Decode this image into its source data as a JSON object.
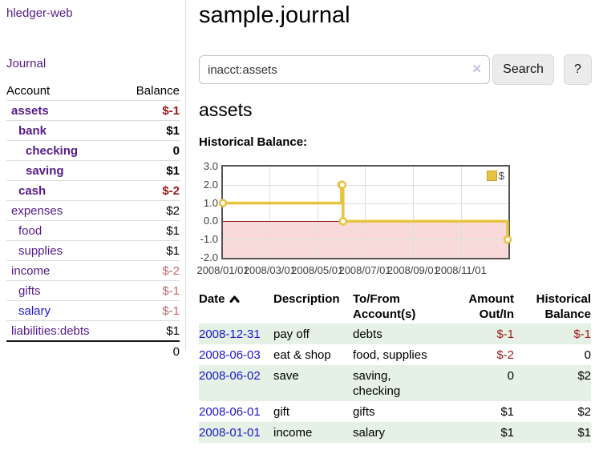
{
  "app": {
    "title": "hledger-web"
  },
  "header": {
    "title": "sample.journal"
  },
  "sidebar": {
    "journal_link": "Journal",
    "accounts_table": {
      "headers": [
        "Account",
        "Balance"
      ],
      "rows": [
        {
          "name": "assets",
          "balance": "$-1",
          "level": 1,
          "bold": true,
          "balance_color": "negative-strong",
          "link_color": "purple"
        },
        {
          "name": "bank",
          "balance": "$1",
          "level": 2,
          "bold": true,
          "balance_color": "normal",
          "link_color": "purple"
        },
        {
          "name": "checking",
          "balance": "0",
          "level": 3,
          "bold": true,
          "balance_color": "normal",
          "link_color": "purple"
        },
        {
          "name": "saving",
          "balance": "$1",
          "level": 3,
          "bold": true,
          "balance_color": "normal",
          "link_color": "purple"
        },
        {
          "name": "cash",
          "balance": "$-2",
          "level": 2,
          "bold": true,
          "balance_color": "negative-strong",
          "link_color": "purple"
        },
        {
          "name": "expenses",
          "balance": "$2",
          "level": 1,
          "bold": false,
          "balance_color": "normal",
          "link_color": "purple"
        },
        {
          "name": "food",
          "balance": "$1",
          "level": 2,
          "bold": false,
          "balance_color": "normal",
          "link_color": "purple"
        },
        {
          "name": "supplies",
          "balance": "$1",
          "level": 2,
          "bold": false,
          "balance_color": "normal",
          "link_color": "purple"
        },
        {
          "name": "income",
          "balance": "$-2",
          "level": 1,
          "bold": false,
          "balance_color": "negative-soft",
          "link_color": "purple"
        },
        {
          "name": "gifts",
          "balance": "$-1",
          "level": 2,
          "bold": false,
          "balance_color": "negative-soft",
          "link_color": "purple"
        },
        {
          "name": "salary",
          "balance": "$-1",
          "level": 2,
          "bold": false,
          "balance_color": "negative-soft",
          "link_color": "blue"
        },
        {
          "name": "liabilities:debts",
          "balance": "$1",
          "level": 1,
          "bold": false,
          "balance_color": "normal",
          "link_color": "purple"
        }
      ],
      "total": "0"
    }
  },
  "search": {
    "query": "inacct:assets",
    "clear_icon": "✕",
    "button_label": "Search",
    "help_label": "?"
  },
  "account_page": {
    "heading": "assets",
    "chart_label": "Historical Balance:"
  },
  "chart_data": {
    "type": "line",
    "step": true,
    "title": "Historical Balance",
    "x_range": [
      "2008-01-01",
      "2009-01-01"
    ],
    "ylim": [
      -2,
      3
    ],
    "grid": true,
    "legend_position": "top-right",
    "legend": {
      "label": "$"
    },
    "series": [
      {
        "name": "$",
        "color": "#e9c340",
        "points": [
          {
            "date": "2008-01-01",
            "value": 1
          },
          {
            "date": "2008-06-01",
            "value": 2
          },
          {
            "date": "2008-06-02",
            "value": 2
          },
          {
            "date": "2008-06-03",
            "value": 0
          },
          {
            "date": "2008-12-31",
            "value": -1
          }
        ]
      }
    ],
    "x_ticks": [
      {
        "date": "2008-01-01",
        "label": "2008/01/01"
      },
      {
        "date": "2008-03-01",
        "label": "2008/03/01"
      },
      {
        "date": "2008-05-01",
        "label": "2008/05/01"
      },
      {
        "date": "2008-07-01",
        "label": "2008/07/01"
      },
      {
        "date": "2008-09-01",
        "label": "2008/09/01"
      },
      {
        "date": "2008-11-01",
        "label": "2008/11/01"
      }
    ],
    "y_ticks": [
      {
        "value": 3,
        "label": "3.0"
      },
      {
        "value": 2,
        "label": "2.0"
      },
      {
        "value": 1,
        "label": "1.0"
      },
      {
        "value": 0,
        "label": "0.0"
      },
      {
        "value": -1,
        "label": "-1.0"
      },
      {
        "value": -2,
        "label": "-2.0"
      }
    ],
    "negative_region_below": 0
  },
  "register_table": {
    "headers": {
      "date": "Date",
      "sort": "ascending",
      "description": "Description",
      "accounts_line1": "To/From",
      "accounts_line2": "Account(s)",
      "amount_line1": "Amount",
      "amount_line2": "Out/In",
      "balance_line1": "Historical",
      "balance_line2": "Balance"
    },
    "rows": [
      {
        "date": "2008-12-31",
        "description": "pay off",
        "accounts": "debts",
        "amount": "$-1",
        "amount_negative": true,
        "balance": "$-1",
        "balance_negative": true
      },
      {
        "date": "2008-06-03",
        "description": "eat & shop",
        "accounts": "food, supplies",
        "amount": "$-2",
        "amount_negative": true,
        "balance": "0",
        "balance_negative": false
      },
      {
        "date": "2008-06-02",
        "description": "save",
        "accounts": "saving, checking",
        "amount": "0",
        "amount_negative": false,
        "balance": "$2",
        "balance_negative": false
      },
      {
        "date": "2008-06-01",
        "description": "gift",
        "accounts": "gifts",
        "amount": "$1",
        "amount_negative": false,
        "balance": "$2",
        "balance_negative": false
      },
      {
        "date": "2008-01-01",
        "description": "income",
        "accounts": "salary",
        "amount": "$1",
        "amount_negative": false,
        "balance": "$1",
        "balance_negative": false
      }
    ]
  },
  "colors": {
    "purple": "#551a8b",
    "blue": "#1b16ce",
    "neg-strong": "#9d1717",
    "neg-soft": "#c16767",
    "row-green": "#e4f1e4",
    "divider": "#dddddd",
    "chart-border": "#545454",
    "grid": "#dedede",
    "chart-pink": "#f9dada",
    "zero-line": "#8b1010",
    "btn-bg": "#ececec",
    "btn-border": "#d9d9d9",
    "input-border": "#c4c4c4",
    "clear-icon": "#c9bedd"
  }
}
